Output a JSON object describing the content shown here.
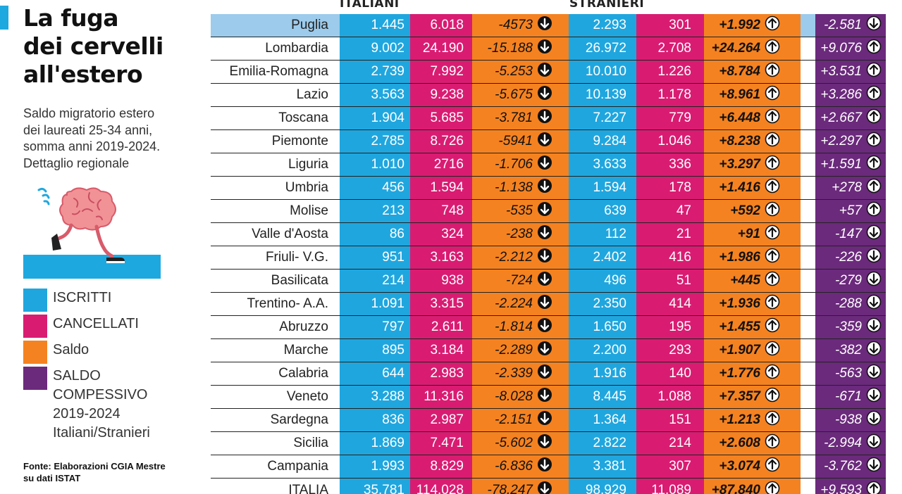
{
  "title": "La fuga dei cervelli all'estero",
  "title_lines": [
    "La fuga",
    "dei cervelli",
    "all'estero"
  ],
  "subtitle_lines": [
    "Saldo migratorio estero",
    "dei laureati 25-34 anni,",
    "somma anni 2019-2024.",
    "Dettaglio regionale"
  ],
  "legend": [
    {
      "label_lines": [
        "ISCRITTI"
      ],
      "color": "#20a6de"
    },
    {
      "label_lines": [
        "CANCELLATI"
      ],
      "color": "#d91c72"
    },
    {
      "label_lines": [
        "Saldo"
      ],
      "color": "#f58220"
    },
    {
      "label_lines": [
        "SALDO",
        "COMPESSIVO",
        "2019-2024",
        "Italiani/Stranieri"
      ],
      "color": "#6b2a7c"
    }
  ],
  "source_lines": [
    "Fonte: Elaborazioni CGIA Mestre",
    "su dati ISTAT"
  ],
  "colors": {
    "iscritti": "#20a6de",
    "cancellati": "#d91c72",
    "saldo": "#f58220",
    "totale": "#6b2a7c",
    "highlight_row": "#9ccbec"
  },
  "icons": {
    "illustration": "running-brain-icon",
    "up": "arrow-up-circle-icon",
    "down": "arrow-down-circle-icon"
  },
  "chart_data": {
    "type": "table",
    "group_headers": [
      "ITALIANI",
      "STRANIERI"
    ],
    "rows": [
      {
        "region": "Puglia",
        "ita_iscritti": "1.445",
        "ita_cancellati": "6.018",
        "ita_saldo": "-4573",
        "ita_dir": "down",
        "str_iscritti": "2.293",
        "str_cancellati": "301",
        "str_saldo": "+1.992",
        "str_dir": "up",
        "totale": "-2.581",
        "tot_dir": "down"
      },
      {
        "region": "Lombardia",
        "ita_iscritti": "9.002",
        "ita_cancellati": "24.190",
        "ita_saldo": "-15.188",
        "ita_dir": "down",
        "str_iscritti": "26.972",
        "str_cancellati": "2.708",
        "str_saldo": "+24.264",
        "str_dir": "up",
        "totale": "+9.076",
        "tot_dir": "up"
      },
      {
        "region": "Emilia-Romagna",
        "ita_iscritti": "2.739",
        "ita_cancellati": "7.992",
        "ita_saldo": "-5.253",
        "ita_dir": "down",
        "str_iscritti": "10.010",
        "str_cancellati": "1.226",
        "str_saldo": "+8.784",
        "str_dir": "up",
        "totale": "+3.531",
        "tot_dir": "up"
      },
      {
        "region": "Lazio",
        "ita_iscritti": "3.563",
        "ita_cancellati": "9.238",
        "ita_saldo": "-5.675",
        "ita_dir": "down",
        "str_iscritti": "10.139",
        "str_cancellati": "1.178",
        "str_saldo": "+8.961",
        "str_dir": "up",
        "totale": "+3.286",
        "tot_dir": "up"
      },
      {
        "region": "Toscana",
        "ita_iscritti": "1.904",
        "ita_cancellati": "5.685",
        "ita_saldo": "-3.781",
        "ita_dir": "down",
        "str_iscritti": "7.227",
        "str_cancellati": "779",
        "str_saldo": "+6.448",
        "str_dir": "up",
        "totale": "+2.667",
        "tot_dir": "up"
      },
      {
        "region": "Piemonte",
        "ita_iscritti": "2.785",
        "ita_cancellati": "8.726",
        "ita_saldo": "-5941",
        "ita_dir": "down",
        "str_iscritti": "9.284",
        "str_cancellati": "1.046",
        "str_saldo": "+8.238",
        "str_dir": "up",
        "totale": "+2.297",
        "tot_dir": "up"
      },
      {
        "region": "Liguria",
        "ita_iscritti": "1.010",
        "ita_cancellati": "2716",
        "ita_saldo": "-1.706",
        "ita_dir": "down",
        "str_iscritti": "3.633",
        "str_cancellati": "336",
        "str_saldo": "+3.297",
        "str_dir": "up",
        "totale": "+1.591",
        "tot_dir": "up"
      },
      {
        "region": "Umbria",
        "ita_iscritti": "456",
        "ita_cancellati": "1.594",
        "ita_saldo": "-1.138",
        "ita_dir": "down",
        "str_iscritti": "1.594",
        "str_cancellati": "178",
        "str_saldo": "+1.416",
        "str_dir": "up",
        "totale": "+278",
        "tot_dir": "up"
      },
      {
        "region": "Molise",
        "ita_iscritti": "213",
        "ita_cancellati": "748",
        "ita_saldo": "-535",
        "ita_dir": "down",
        "str_iscritti": "639",
        "str_cancellati": "47",
        "str_saldo": "+592",
        "str_dir": "up",
        "totale": "+57",
        "tot_dir": "up"
      },
      {
        "region": "Valle d'Aosta",
        "ita_iscritti": "86",
        "ita_cancellati": "324",
        "ita_saldo": "-238",
        "ita_dir": "down",
        "str_iscritti": "112",
        "str_cancellati": "21",
        "str_saldo": "+91",
        "str_dir": "up",
        "totale": "-147",
        "tot_dir": "down"
      },
      {
        "region": "Friuli- V.G.",
        "ita_iscritti": "951",
        "ita_cancellati": "3.163",
        "ita_saldo": "-2.212",
        "ita_dir": "down",
        "str_iscritti": "2.402",
        "str_cancellati": "416",
        "str_saldo": "+1.986",
        "str_dir": "up",
        "totale": "-226",
        "tot_dir": "down"
      },
      {
        "region": "Basilicata",
        "ita_iscritti": "214",
        "ita_cancellati": "938",
        "ita_saldo": "-724",
        "ita_dir": "down",
        "str_iscritti": "496",
        "str_cancellati": "51",
        "str_saldo": "+445",
        "str_dir": "up",
        "totale": "-279",
        "tot_dir": "down"
      },
      {
        "region": "Trentino- A.A.",
        "ita_iscritti": "1.091",
        "ita_cancellati": "3.315",
        "ita_saldo": "-2.224",
        "ita_dir": "down",
        "str_iscritti": "2.350",
        "str_cancellati": "414",
        "str_saldo": "+1.936",
        "str_dir": "up",
        "totale": "-288",
        "tot_dir": "down"
      },
      {
        "region": "Abruzzo",
        "ita_iscritti": "797",
        "ita_cancellati": "2.611",
        "ita_saldo": "-1.814",
        "ita_dir": "down",
        "str_iscritti": "1.650",
        "str_cancellati": "195",
        "str_saldo": "+1.455",
        "str_dir": "up",
        "totale": "-359",
        "tot_dir": "down"
      },
      {
        "region": "Marche",
        "ita_iscritti": "895",
        "ita_cancellati": "3.184",
        "ita_saldo": "-2.289",
        "ita_dir": "down",
        "str_iscritti": "2.200",
        "str_cancellati": "293",
        "str_saldo": "+1.907",
        "str_dir": "up",
        "totale": "-382",
        "tot_dir": "down"
      },
      {
        "region": "Calabria",
        "ita_iscritti": "644",
        "ita_cancellati": "2.983",
        "ita_saldo": "-2.339",
        "ita_dir": "down",
        "str_iscritti": "1.916",
        "str_cancellati": "140",
        "str_saldo": "+1.776",
        "str_dir": "up",
        "totale": "-563",
        "tot_dir": "down"
      },
      {
        "region": "Veneto",
        "ita_iscritti": "3.288",
        "ita_cancellati": "11.316",
        "ita_saldo": "-8.028",
        "ita_dir": "down",
        "str_iscritti": "8.445",
        "str_cancellati": "1.088",
        "str_saldo": "+7.357",
        "str_dir": "up",
        "totale": "-671",
        "tot_dir": "down"
      },
      {
        "region": "Sardegna",
        "ita_iscritti": "836",
        "ita_cancellati": "2.987",
        "ita_saldo": "-2.151",
        "ita_dir": "down",
        "str_iscritti": "1.364",
        "str_cancellati": "151",
        "str_saldo": "+1.213",
        "str_dir": "up",
        "totale": "-938",
        "tot_dir": "down"
      },
      {
        "region": "Sicilia",
        "ita_iscritti": "1.869",
        "ita_cancellati": "7.471",
        "ita_saldo": "-5.602",
        "ita_dir": "down",
        "str_iscritti": "2.822",
        "str_cancellati": "214",
        "str_saldo": "+2.608",
        "str_dir": "up",
        "totale": "-2.994",
        "tot_dir": "down"
      },
      {
        "region": "Campania",
        "ita_iscritti": "1.993",
        "ita_cancellati": "8.829",
        "ita_saldo": "-6.836",
        "ita_dir": "down",
        "str_iscritti": "3.381",
        "str_cancellati": "307",
        "str_saldo": "+3.074",
        "str_dir": "up",
        "totale": "-3.762",
        "tot_dir": "down"
      },
      {
        "region": "ITALIA",
        "ita_iscritti": "35.781",
        "ita_cancellati": "114.028",
        "ita_saldo": "-78.247",
        "ita_dir": "down",
        "str_iscritti": "98.929",
        "str_cancellati": "11.089",
        "str_saldo": "+87.840",
        "str_dir": "up",
        "totale": "+9.593",
        "tot_dir": "up"
      }
    ]
  }
}
